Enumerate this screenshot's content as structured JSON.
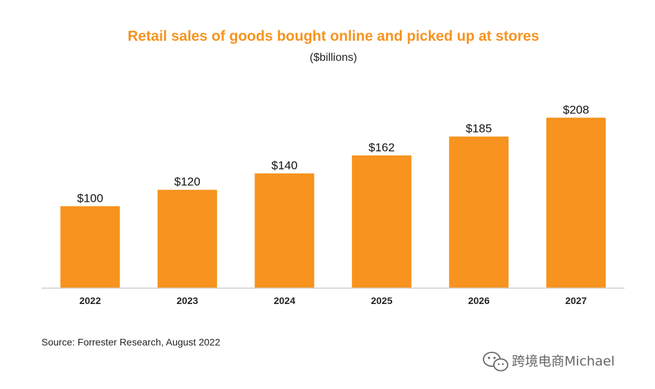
{
  "chart_data": {
    "type": "bar",
    "title": "Retail sales of goods bought online and picked up at stores",
    "subtitle": "($billions)",
    "categories": [
      "2022",
      "2023",
      "2024",
      "2025",
      "2026",
      "2027"
    ],
    "values": [
      100,
      120,
      140,
      162,
      185,
      208
    ],
    "value_labels": [
      "$100",
      "$120",
      "$140",
      "$162",
      "$185",
      "$208"
    ],
    "ylim": [
      0,
      210
    ],
    "grid": false,
    "legend": "none",
    "bar_color": "#F7931E",
    "title_color": "#F7931E"
  },
  "source": "Source: Forrester Research, August 2022",
  "watermark": {
    "text": "跨境电商Michael",
    "icon": "wechat-icon"
  }
}
